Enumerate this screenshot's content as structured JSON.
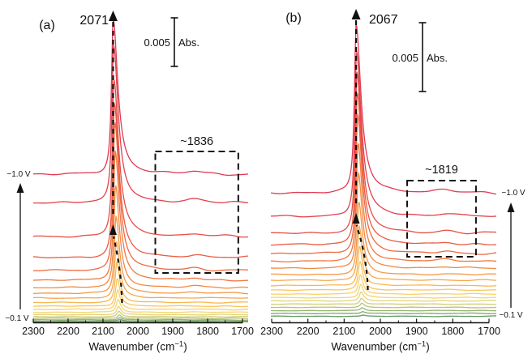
{
  "figure": {
    "background": "#ffffff",
    "text_color": "#111111",
    "annotation_color": "#111111"
  },
  "chart_data": [
    {
      "type": "line",
      "panel_label": "(a)",
      "xlabel_main": "Wavenumber (cm",
      "xlabel_sup": "−1",
      "xlabel_close": ")",
      "x_range": [
        2300,
        1700
      ],
      "x_ticks": [
        2300,
        2200,
        2100,
        2000,
        1900,
        1800,
        1700
      ],
      "peak_label": "2071",
      "peak_wavenumber": 2071,
      "band_box_label": "~1836",
      "band_box_wavenumbers": [
        1950,
        1712
      ],
      "scalebar_value": "0.005",
      "scalebar_unit": "Abs.",
      "potential_top_label": "−1.0 V",
      "potential_bottom_label": "−0.1 V",
      "series": {
        "colors": [
          "#e03a55",
          "#e2414b",
          "#e54e46",
          "#e95c43",
          "#ed6a41",
          "#f07940",
          "#f28943",
          "#f49947",
          "#f6a94d",
          "#f8b755",
          "#f9c560",
          "#f9d16c",
          "#f3d675",
          "#e5d47a",
          "#d0cc7c",
          "#b5c27a",
          "#99b574",
          "#7ba76c",
          "#5e9961"
        ],
        "baselines_y": [
          215,
          250,
          292,
          318,
          334,
          346,
          355,
          362,
          368,
          373.5,
          378,
          382,
          385.5,
          388.5,
          391,
          393,
          394.8,
          396.2,
          397.2
        ],
        "amplitudes": [
          192,
          194,
          194,
          190,
          184,
          160,
          126,
          95,
          70,
          50,
          35,
          24,
          16,
          10,
          6.5,
          4.5,
          3,
          2,
          1.2
        ],
        "centers_wn": [
          2071,
          2069.8,
          2068.7,
          2067.5,
          2066.3,
          2065.2,
          2064,
          2062.8,
          2061.7,
          2060.5,
          2059.3,
          2058.2,
          2057,
          2055.8,
          2054.7,
          2053.5,
          2052.3,
          2051.2,
          2050
        ]
      }
    },
    {
      "type": "line",
      "panel_label": "(b)",
      "xlabel_main": "Wavenumber (cm",
      "xlabel_sup": "−1",
      "xlabel_close": ")",
      "x_range": [
        2300,
        1700
      ],
      "x_ticks": [
        2300,
        2200,
        2100,
        2000,
        1900,
        1800,
        1700
      ],
      "peak_label": "2067",
      "peak_wavenumber": 2067,
      "band_box_label": "~1819",
      "band_box_wavenumbers": [
        1926,
        1736
      ],
      "scalebar_value": "0.005",
      "scalebar_unit": "Abs.",
      "potential_top_label": "−1.0 V",
      "potential_bottom_label": "−0.1 V",
      "series": {
        "colors": [
          "#e03a55",
          "#e2414b",
          "#e54e46",
          "#e95c43",
          "#ed6a41",
          "#f07940",
          "#f28943",
          "#f49947",
          "#f6a94d",
          "#f8b755",
          "#f9c560",
          "#f9d16c",
          "#f3d675",
          "#e5d47a",
          "#d0cc7c",
          "#b5c27a",
          "#99b574",
          "#7ba76c",
          "#5e9961"
        ],
        "baselines_y": [
          238,
          267,
          288,
          302,
          313,
          322.5,
          331,
          339,
          346,
          352.5,
          358,
          363,
          367.5,
          371.5,
          375.5,
          379.5,
          383.5,
          387,
          390.5
        ],
        "amplitudes": [
          208,
          204,
          198,
          188,
          172,
          146,
          118,
          90,
          67,
          49,
          35,
          24,
          16.5,
          11,
          7.5,
          5,
          3.5,
          2.3,
          1.4
        ],
        "centers_wn": [
          2067,
          2065.9,
          2064.9,
          2063.8,
          2062.8,
          2061.7,
          2060.7,
          2059.6,
          2058.6,
          2057.5,
          2056.4,
          2055.4,
          2054.3,
          2053.3,
          2052.2,
          2051.2,
          2050.1,
          2049.1,
          2048
        ]
      }
    }
  ]
}
